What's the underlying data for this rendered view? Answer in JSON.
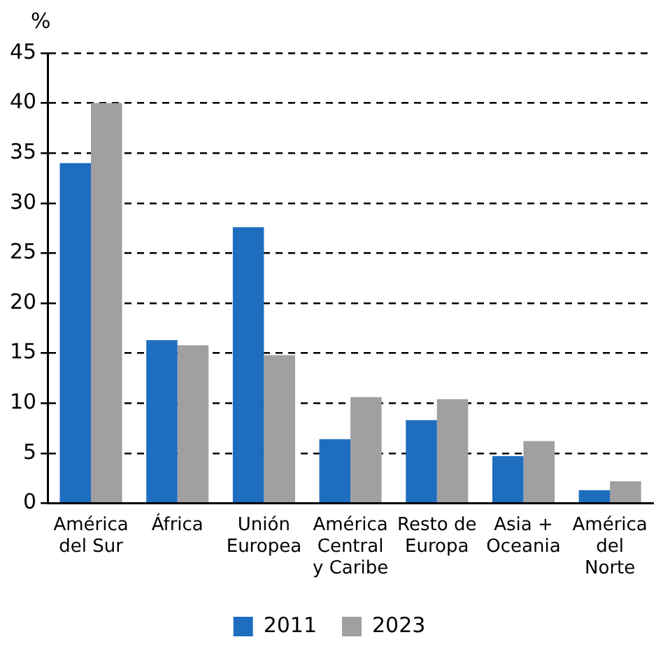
{
  "chart_data": {
    "type": "bar",
    "ylabel": "%",
    "categories": [
      "América del Sur",
      "África",
      "Unión Europea",
      "América Central y Caribe",
      "Resto de Europa",
      "Asia + Oceania",
      "América del Norte"
    ],
    "series": [
      {
        "name": "2011",
        "color": "#1f6dbf",
        "values": [
          34,
          16.3,
          27.6,
          6.4,
          8.3,
          4.7,
          1.3
        ]
      },
      {
        "name": "2023",
        "color": "#a0a0a0",
        "values": [
          40,
          15.8,
          14.8,
          10.6,
          10.4,
          6.2,
          2.2
        ]
      }
    ],
    "ylim": [
      0,
      45
    ],
    "yticks": [
      0,
      5,
      10,
      15,
      20,
      25,
      30,
      35,
      40,
      45
    ],
    "grid": "y",
    "line_style": "dashed",
    "legend": "bottom"
  }
}
